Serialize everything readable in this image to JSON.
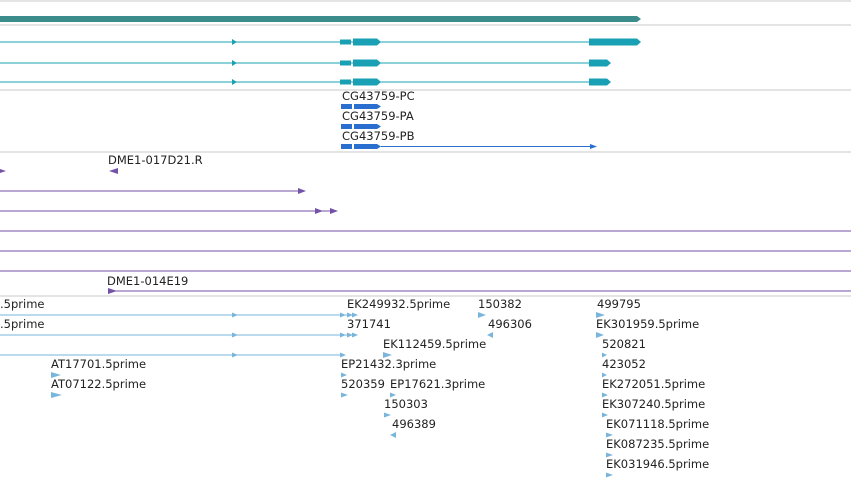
{
  "colors": {
    "background": "#ffffff",
    "separator": "#c8c8c8",
    "gene_span": "#3c8c8c",
    "transcript": "#1aa0b4",
    "cds": "#2a6fd0",
    "clone": "#7452a8",
    "est": "#7ab6dc",
    "label": "#222222"
  },
  "gene_models": {
    "labels": [
      "CG43759-PC",
      "CG43759-PA",
      "CG43759-PB"
    ]
  },
  "clones": {
    "labels": [
      "DME1-017D21.R",
      "DME1-014E19"
    ]
  },
  "ests": {
    "labels": [
      ".5prime",
      "EK249932.5prime",
      "150382",
      "499795",
      ".5prime",
      "371741",
      "496306",
      "EK301959.5prime",
      "EK112459.5prime",
      "520821",
      "AT17701.5prime",
      "EP21432.3prime",
      "423052",
      "AT07122.5prime",
      "520359",
      "EP17621.3prime",
      "EK272051.5prime",
      "150303",
      "EK307240.5prime",
      "496389",
      "EK071118.5prime",
      "EK087235.5prime",
      "EK031946.5prime"
    ]
  }
}
